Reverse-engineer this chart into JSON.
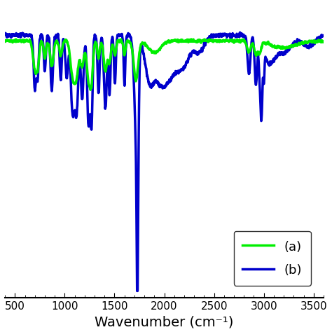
{
  "xlabel": "Wavenumber (cm⁻¹)",
  "xlim": [
    400,
    3600
  ],
  "ylim": [
    -1.05,
    1.05
  ],
  "xticks": [
    500,
    1000,
    1500,
    2000,
    2500,
    3000,
    3500
  ],
  "color_a": "#00ee00",
  "color_b": "#0000cc",
  "legend_labels": [
    "(a)",
    "(b)"
  ],
  "linewidth_a": 2.5,
  "linewidth_b": 2.5
}
